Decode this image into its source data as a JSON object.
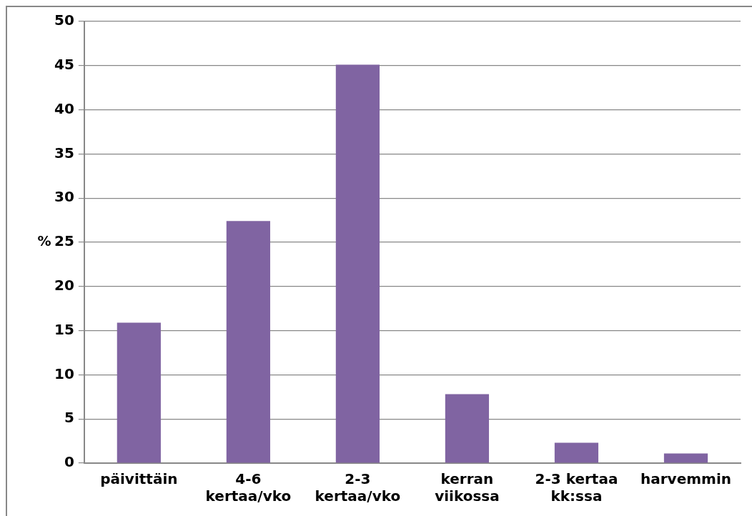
{
  "chart_data": {
    "type": "bar",
    "ylabel": "%",
    "categories": [
      "päivittäin",
      "4-6 kertaa/vko",
      "2-3 kertaa/vko",
      "kerran viikossa",
      "2-3 kertaa kk:ssa",
      "harvemmin"
    ],
    "values": [
      15.9,
      27.4,
      45.1,
      7.8,
      2.3,
      1.1
    ],
    "color": "#8064a2",
    "ylim": [
      0,
      50
    ],
    "yticks": [
      0,
      5,
      10,
      15,
      20,
      25,
      30,
      35,
      40,
      45,
      50
    ],
    "grid": "y",
    "legend": false
  }
}
